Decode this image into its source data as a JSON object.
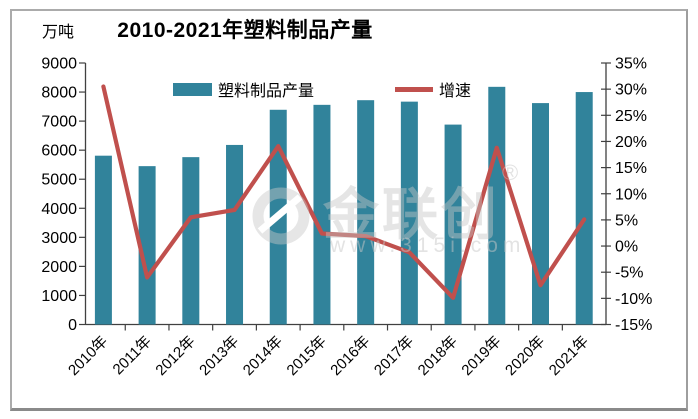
{
  "watermark": {
    "brand": "金联创",
    "reg": "®",
    "url": "www.315i.com"
  },
  "chart_data": {
    "type": "bar+line combo",
    "title": "2010-2021年塑料制品产量",
    "legend_position": "top-inside",
    "grid": false,
    "left_axis": {
      "unit": "万吨",
      "min": 0,
      "max": 9000,
      "step": 1000
    },
    "right_axis": {
      "min": -15,
      "max": 35,
      "step": 5,
      "format": "percent"
    },
    "categories": [
      "2010年",
      "2011年",
      "2012年",
      "2013年",
      "2014年",
      "2015年",
      "2016年",
      "2017年",
      "2018年",
      "2019年",
      "2020年",
      "2021年"
    ],
    "series": [
      {
        "name": "塑料制品产量",
        "type": "bar",
        "axis": "left",
        "color": "#31839B",
        "values": [
          5810,
          5450,
          5760,
          6180,
          7390,
          7560,
          7720,
          7670,
          6880,
          8180,
          7620,
          8000
        ]
      },
      {
        "name": "增速",
        "type": "line",
        "axis": "right",
        "color": "#C0504D",
        "values": [
          30.5,
          -6.0,
          5.5,
          6.9,
          19.1,
          2.4,
          1.9,
          -1.2,
          -9.9,
          18.8,
          -7.5,
          5.1
        ]
      }
    ]
  }
}
